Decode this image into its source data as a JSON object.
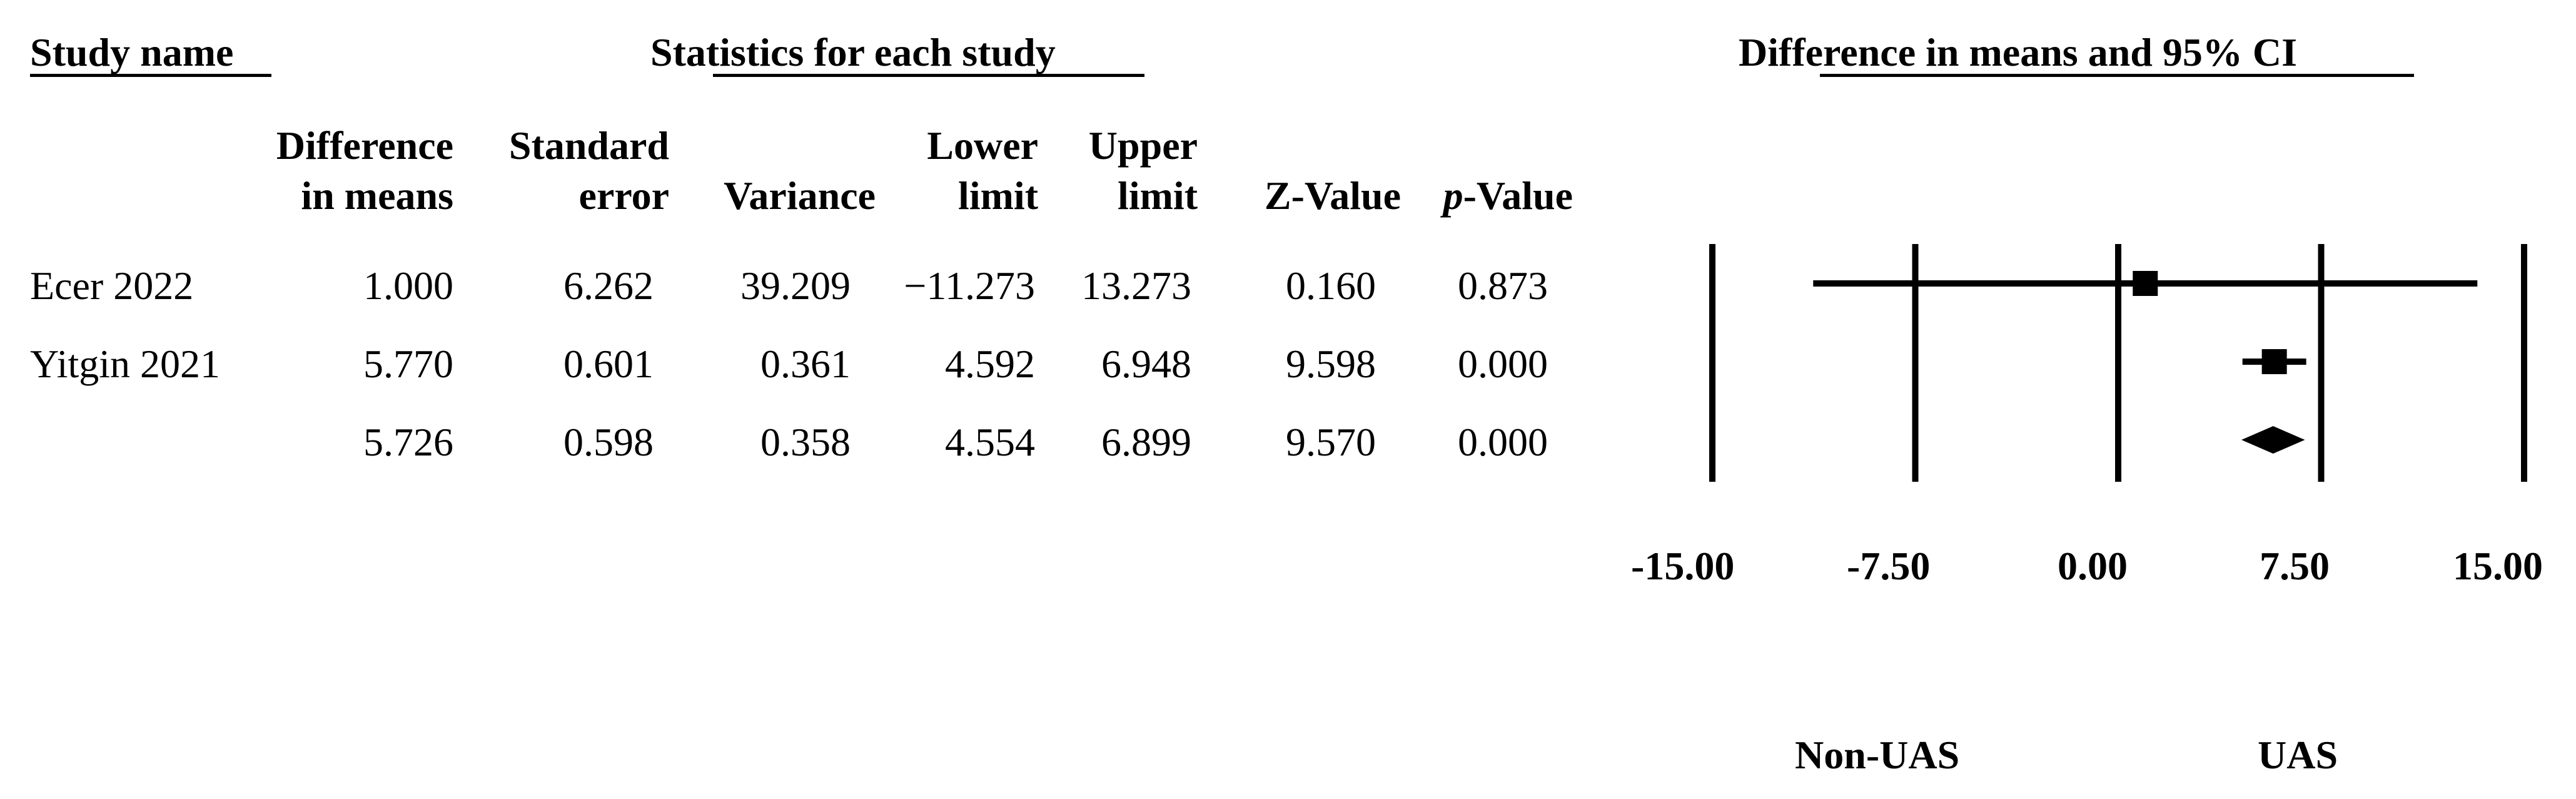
{
  "headers": {
    "study_name": "Study name",
    "statistics": "Statistics for each study",
    "forest": "Difference in means and 95% CI"
  },
  "columns": {
    "diff": [
      "Difference",
      "in means"
    ],
    "se": [
      "Standard",
      "error"
    ],
    "variance": "Variance",
    "lower": [
      "Lower",
      "limit"
    ],
    "upper": [
      "Upper",
      "limit"
    ],
    "z": "Z-Value",
    "p_italic": "p",
    "p_rest": "-Value"
  },
  "rows": [
    {
      "name": "Ecer 2022",
      "diff": "1.000",
      "se": "6.262",
      "variance": "39.209",
      "lower": "−11.273",
      "upper": "13.273",
      "z": "0.160",
      "p": "0.873"
    },
    {
      "name": "Yitgin 2021",
      "diff": "5.770",
      "se": "0.601",
      "variance": "0.361",
      "lower": "4.592",
      "upper": "6.948",
      "z": "9.598",
      "p": "0.000"
    },
    {
      "name": "",
      "diff": "5.726",
      "se": "0.598",
      "variance": "0.358",
      "lower": "4.554",
      "upper": "6.899",
      "z": "9.570",
      "p": "0.000"
    }
  ],
  "axis_tick_labels": [
    "-15.00",
    "-7.50",
    "0.00",
    "7.50",
    "15.00"
  ],
  "favours": {
    "left": "Non-UAS",
    "right": "UAS"
  },
  "chart_data": {
    "type": "forest",
    "title": "Difference in means and 95% CI",
    "xlim": [
      -15,
      15
    ],
    "ticks": [
      -15,
      -7.5,
      0,
      7.5,
      15
    ],
    "studies": [
      {
        "label": "Ecer 2022",
        "estimate": 1.0,
        "lower": -11.273,
        "upper": 13.273,
        "shape": "square"
      },
      {
        "label": "Yitgin 2021",
        "estimate": 5.77,
        "lower": 4.592,
        "upper": 6.948,
        "shape": "square"
      },
      {
        "label": "",
        "estimate": 5.726,
        "lower": 4.554,
        "upper": 6.899,
        "shape": "diamond"
      }
    ]
  }
}
